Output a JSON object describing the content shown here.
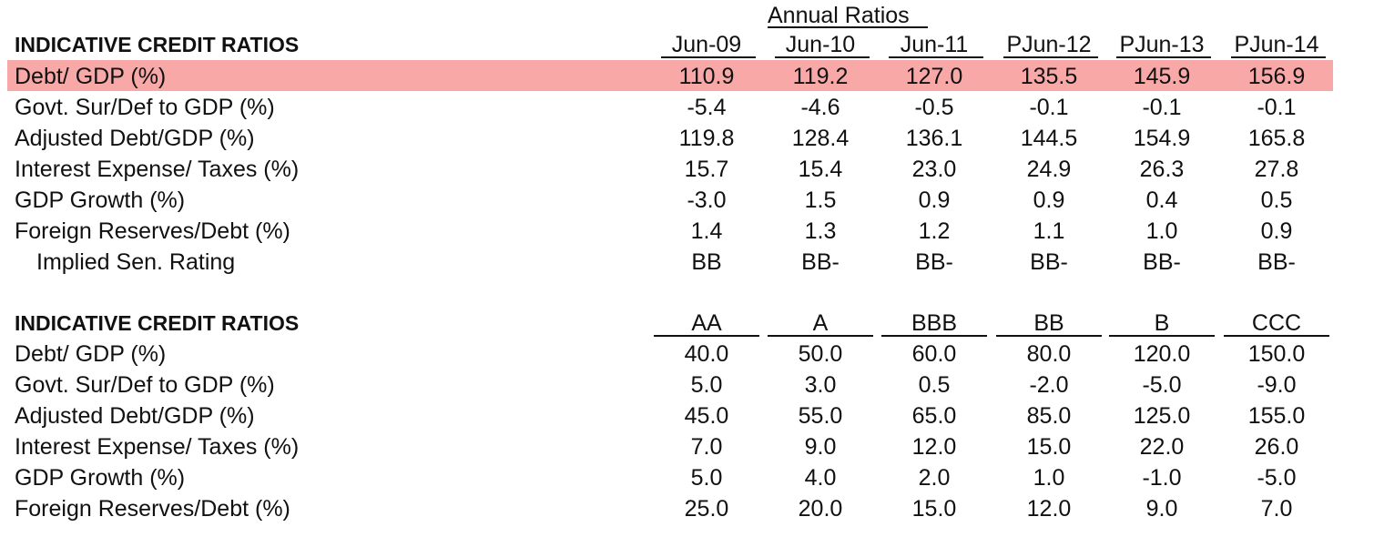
{
  "colors": {
    "highlight": "#f9a8a8"
  },
  "group_title": "Annual Ratios",
  "table1": {
    "title": "INDICATIVE CREDIT RATIOS",
    "columns": [
      "Jun-09",
      "Jun-10",
      "Jun-11",
      "PJun-12",
      "PJun-13",
      "PJun-14"
    ],
    "rows": [
      {
        "label": "Debt/ GDP (%)",
        "values": [
          "110.9",
          "119.2",
          "127.0",
          "135.5",
          "145.9",
          "156.9"
        ]
      },
      {
        "label": "Govt. Sur/Def to GDP (%)",
        "values": [
          "-5.4",
          "-4.6",
          "-0.5",
          "-0.1",
          "-0.1",
          "-0.1"
        ]
      },
      {
        "label": "Adjusted Debt/GDP (%)",
        "values": [
          "119.8",
          "128.4",
          "136.1",
          "144.5",
          "154.9",
          "165.8"
        ]
      },
      {
        "label": "Interest Expense/ Taxes (%)",
        "values": [
          "15.7",
          "15.4",
          "23.0",
          "24.9",
          "26.3",
          "27.8"
        ]
      },
      {
        "label": "GDP Growth (%)",
        "values": [
          "-3.0",
          "1.5",
          "0.9",
          "0.9",
          "0.4",
          "0.5"
        ]
      },
      {
        "label": "Foreign Reserves/Debt (%)",
        "values": [
          "1.4",
          "1.3",
          "1.2",
          "1.1",
          "1.0",
          "0.9"
        ]
      },
      {
        "label": "Implied Sen. Rating",
        "values": [
          "BB",
          "BB-",
          "BB-",
          "BB-",
          "BB-",
          "BB-"
        ]
      }
    ]
  },
  "table2": {
    "title": "INDICATIVE CREDIT RATIOS",
    "columns": [
      "AA",
      "A",
      "BBB",
      "BB",
      "B",
      "CCC"
    ],
    "rows": [
      {
        "label": "Debt/ GDP (%)",
        "values": [
          "40.0",
          "50.0",
          "60.0",
          "80.0",
          "120.0",
          "150.0"
        ]
      },
      {
        "label": "Govt. Sur/Def to GDP (%)",
        "values": [
          "5.0",
          "3.0",
          "0.5",
          "-2.0",
          "-5.0",
          "-9.0"
        ]
      },
      {
        "label": "Adjusted Debt/GDP (%)",
        "values": [
          "45.0",
          "55.0",
          "65.0",
          "85.0",
          "125.0",
          "155.0"
        ]
      },
      {
        "label": "Interest Expense/ Taxes (%)",
        "values": [
          "7.0",
          "9.0",
          "12.0",
          "15.0",
          "22.0",
          "26.0"
        ]
      },
      {
        "label": "GDP Growth (%)",
        "values": [
          "5.0",
          "4.0",
          "2.0",
          "1.0",
          "-1.0",
          "-5.0"
        ]
      },
      {
        "label": "Foreign Reserves/Debt (%)",
        "values": [
          "25.0",
          "20.0",
          "15.0",
          "12.0",
          "9.0",
          "7.0"
        ]
      }
    ]
  }
}
